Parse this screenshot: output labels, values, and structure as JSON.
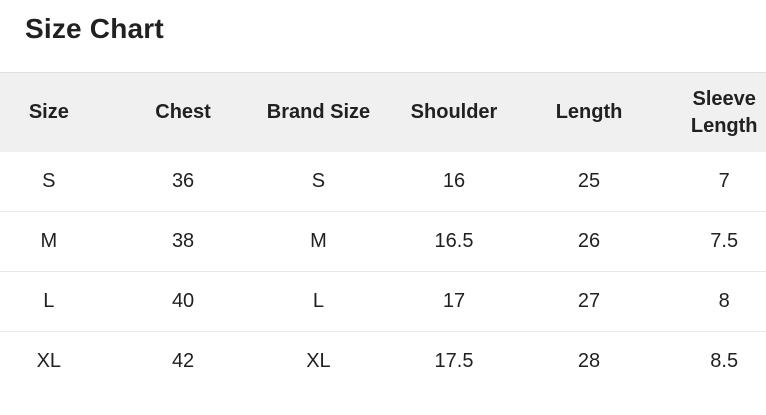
{
  "title": "Size Chart",
  "colors": {
    "background": "#ffffff",
    "text": "#212121",
    "header_bg": "#f0f0f0",
    "header_top_border": "#e0e0e0",
    "row_divider": "#e8e8e8"
  },
  "chart_data": {
    "type": "table",
    "title": "Size Chart",
    "columns": [
      "Size",
      "Chest",
      "Brand Size",
      "Shoulder",
      "Length",
      "Sleeve Length"
    ],
    "rows": [
      [
        "S",
        "36",
        "S",
        "16",
        "25",
        "7"
      ],
      [
        "M",
        "38",
        "M",
        "16.5",
        "26",
        "7.5"
      ],
      [
        "L",
        "40",
        "L",
        "17",
        "27",
        "8"
      ],
      [
        "XL",
        "42",
        "XL",
        "17.5",
        "28",
        "8.5"
      ]
    ]
  }
}
